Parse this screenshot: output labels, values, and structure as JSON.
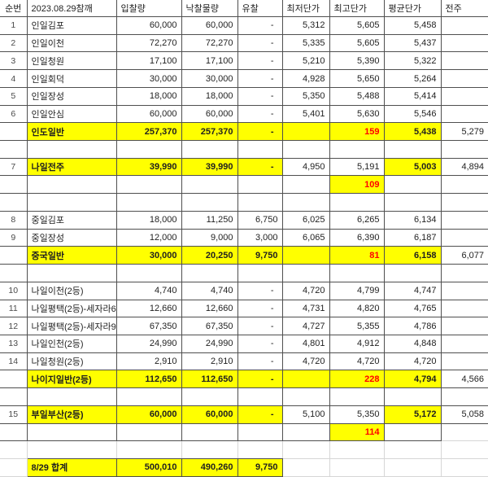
{
  "title": "2023.08.29참깨",
  "columns": [
    "순번",
    "2023.08.29참깨",
    "입찰량",
    "낙찰물량",
    "유찰",
    "최저단가",
    "최고단가",
    "평균단가",
    "전주"
  ],
  "colors": {
    "highlight": "#ffff00",
    "alert": "#ff0000",
    "border": "#4f4f4f",
    "gridline": "#d6d6d6"
  },
  "rows": [
    [
      "1",
      "인일김포",
      "60,000",
      "60,000",
      "-",
      "5,312",
      "5,605",
      "5,458",
      ""
    ],
    [
      "2",
      "인일이천",
      "72,270",
      "72,270",
      "-",
      "5,335",
      "5,605",
      "5,437",
      ""
    ],
    [
      "3",
      "인일청원",
      "17,100",
      "17,100",
      "-",
      "5,210",
      "5,390",
      "5,322",
      ""
    ],
    [
      "4",
      "인일회덕",
      "30,000",
      "30,000",
      "-",
      "4,928",
      "5,650",
      "5,264",
      ""
    ],
    [
      "5",
      "인일장성",
      "18,000",
      "18,000",
      "-",
      "5,350",
      "5,488",
      "5,414",
      ""
    ],
    [
      "6",
      "인일안심",
      "60,000",
      "60,000",
      "-",
      "5,401",
      "5,630",
      "5,546",
      ""
    ],
    [
      "",
      {
        "v": "인도일반",
        "y": 1,
        "b": 1
      },
      {
        "v": "257,370",
        "y": 1,
        "b": 1
      },
      {
        "v": "257,370",
        "y": 1,
        "b": 1
      },
      {
        "v": "-",
        "y": 1,
        "b": 1
      },
      {
        "v": "",
        "y": 1
      },
      {
        "v": "159",
        "y": 1,
        "red": 1
      },
      {
        "v": "5,438",
        "y": 1,
        "b": 1
      },
      "5,279"
    ],
    [
      "",
      "",
      "",
      "",
      "",
      "",
      "",
      "",
      ""
    ],
    [
      "7",
      {
        "v": "나일전주",
        "y": 1,
        "b": 1
      },
      {
        "v": "39,990",
        "y": 1,
        "b": 1
      },
      {
        "v": "39,990",
        "y": 1,
        "b": 1
      },
      {
        "v": "-",
        "y": 1,
        "b": 1
      },
      "4,950",
      "5,191",
      {
        "v": "5,003",
        "y": 1,
        "b": 1
      },
      "4,894"
    ],
    [
      "",
      "",
      "",
      "",
      "",
      "",
      {
        "v": "109",
        "y": 1,
        "red": 1
      },
      "",
      ""
    ],
    [
      "",
      "",
      "",
      "",
      "",
      "",
      "",
      "",
      ""
    ],
    [
      "8",
      "중일김포",
      "18,000",
      "11,250",
      "6,750",
      "6,025",
      "6,265",
      "6,134",
      ""
    ],
    [
      "9",
      "중일장성",
      "12,000",
      "9,000",
      "3,000",
      "6,065",
      "6,390",
      "6,187",
      ""
    ],
    [
      "",
      {
        "v": "중국일반",
        "y": 1,
        "b": 1
      },
      {
        "v": "30,000",
        "y": 1,
        "b": 1
      },
      {
        "v": "20,250",
        "y": 1,
        "b": 1
      },
      {
        "v": "9,750",
        "y": 1,
        "b": 1
      },
      {
        "v": "",
        "y": 1
      },
      {
        "v": "81",
        "y": 1,
        "red": 1
      },
      {
        "v": "6,158",
        "y": 1,
        "b": 1
      },
      "6,077"
    ],
    [
      "",
      "",
      "",
      "",
      "",
      "",
      "",
      "",
      ""
    ],
    [
      "10",
      "나일이천(2등)",
      "4,740",
      "4,740",
      "-",
      "4,720",
      "4,799",
      "4,747",
      ""
    ],
    [
      "11",
      "나일평택(2등)-세자라6",
      "12,660",
      "12,660",
      "-",
      "4,731",
      "4,820",
      "4,765",
      ""
    ],
    [
      "12",
      "나일평택(2등)-세자라9",
      "67,350",
      "67,350",
      "-",
      "4,727",
      "5,355",
      "4,786",
      ""
    ],
    [
      "13",
      "나일인천(2등)",
      "24,990",
      "24,990",
      "-",
      "4,801",
      "4,912",
      "4,848",
      ""
    ],
    [
      "14",
      "나일청원(2등)",
      "2,910",
      "2,910",
      "-",
      "4,720",
      "4,720",
      "4,720",
      ""
    ],
    [
      "",
      {
        "v": "나이지일반(2등)",
        "y": 1,
        "b": 1
      },
      {
        "v": "112,650",
        "y": 1,
        "b": 1
      },
      {
        "v": "112,650",
        "y": 1,
        "b": 1
      },
      {
        "v": "-",
        "y": 1,
        "b": 1
      },
      {
        "v": "",
        "y": 1
      },
      {
        "v": "228",
        "y": 1,
        "red": 1
      },
      {
        "v": "4,794",
        "y": 1,
        "b": 1
      },
      "4,566"
    ],
    [
      "",
      "",
      "",
      "",
      "",
      "",
      "",
      "",
      ""
    ],
    [
      "15",
      {
        "v": "부일부산(2등)",
        "y": 1,
        "b": 1
      },
      {
        "v": "60,000",
        "y": 1,
        "b": 1
      },
      {
        "v": "60,000",
        "y": 1,
        "b": 1
      },
      {
        "v": "-",
        "y": 1,
        "b": 1
      },
      "5,100",
      "5,350",
      {
        "v": "5,172",
        "y": 1,
        "b": 1
      },
      "5,058"
    ],
    [
      "",
      "",
      "",
      "",
      "",
      "",
      {
        "v": "114",
        "y": 1,
        "red": 1
      },
      "",
      {
        "v": "",
        "bl": 1
      }
    ],
    [
      {
        "v": "",
        "lt": 1
      },
      {
        "v": "",
        "lt": 1,
        "bb": 1
      },
      {
        "v": "",
        "lt": 1,
        "bb": 1
      },
      {
        "v": "",
        "lt": 1,
        "bb": 1
      },
      {
        "v": "",
        "lt": 1,
        "bb": 1
      },
      {
        "v": "",
        "lt": 1
      },
      {
        "v": "",
        "lt": 1
      },
      {
        "v": "",
        "lt": 1
      },
      {
        "v": "",
        "lt": 1
      }
    ],
    [
      {
        "v": "",
        "lt": 1
      },
      {
        "v": "8/29 합계",
        "y": 1,
        "b": 1
      },
      {
        "v": "500,010",
        "y": 1,
        "b": 1
      },
      {
        "v": "490,260",
        "y": 1,
        "b": 1
      },
      {
        "v": "9,750",
        "y": 1,
        "b": 1
      },
      {
        "v": "",
        "lt": 1
      },
      {
        "v": "",
        "lt": 1
      },
      {
        "v": "",
        "lt": 1
      },
      {
        "v": "",
        "lt": 1
      }
    ]
  ]
}
